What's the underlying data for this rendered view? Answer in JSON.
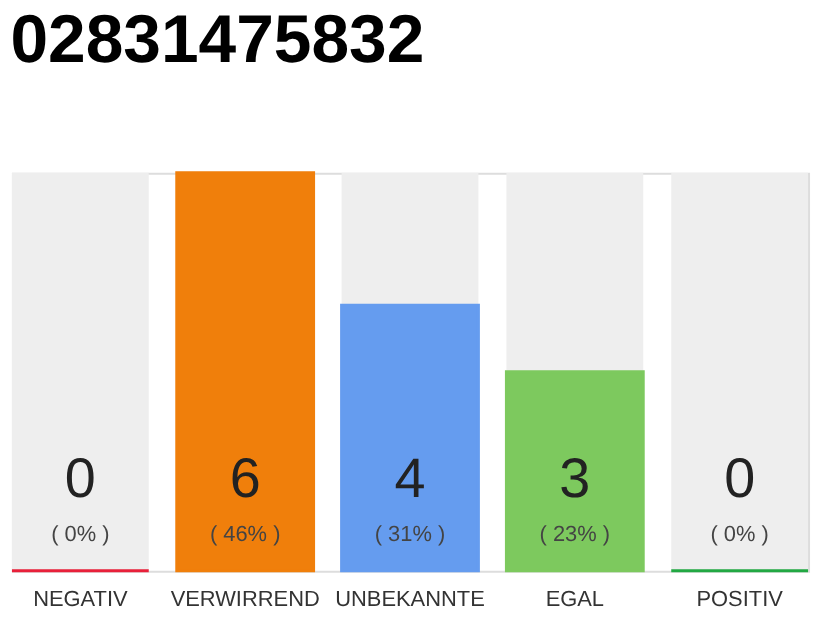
{
  "chart_data": {
    "type": "bar",
    "title": "02831475832",
    "categories": [
      "NEGATIV",
      "VERWIRREND",
      "UNBEKANNTE",
      "EGAL",
      "POSITIV"
    ],
    "values": [
      0,
      6,
      4,
      3,
      0
    ],
    "colors": [
      "#e8203a",
      "#f07f0b",
      "#659cef",
      "#7dc95e",
      "#22a843"
    ],
    "data_labels": true,
    "annotations": [
      {
        "text": "( 0% )",
        "x": "NEGATIV",
        "y": 0
      },
      {
        "text": "( 46% )",
        "x": "VERWIRREND",
        "y": 0
      },
      {
        "text": "( 31% )",
        "x": "UNBEKANNTE",
        "y": 0
      },
      {
        "text": "( 23% )",
        "x": "EGAL",
        "y": 0
      },
      {
        "text": "( 0% )",
        "x": "POSITIV",
        "y": 0
      }
    ]
  }
}
